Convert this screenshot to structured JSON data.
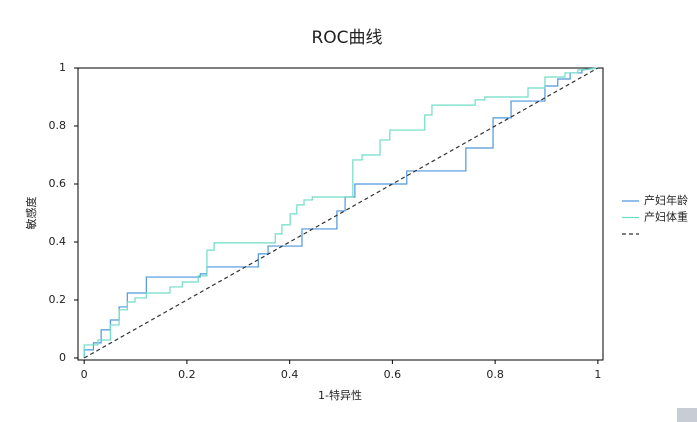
{
  "chart_data": {
    "type": "line",
    "title": "ROC曲线",
    "x_label": "1-特异性",
    "y_label": "敏感度",
    "xlim": [
      -0.012,
      1.01
    ],
    "ylim": [
      -0.007,
      1.0
    ],
    "xticks": [
      0,
      0.2,
      0.4,
      0.6,
      0.8,
      1
    ],
    "yticks": [
      0,
      0.2,
      0.4,
      0.6,
      0.8,
      1
    ],
    "legend": "right",
    "series": [
      {
        "name": "产妇年龄",
        "color": "#4f97dc",
        "x": [
          0,
          0,
          0.018,
          0.018,
          0.033,
          0.033,
          0.051,
          0.051,
          0.068,
          0.068,
          0.084,
          0.084,
          0.121,
          0.121,
          0.226,
          0.226,
          0.239,
          0.239,
          0.339,
          0.339,
          0.358,
          0.358,
          0.424,
          0.424,
          0.492,
          0.492,
          0.508,
          0.508,
          0.527,
          0.527,
          0.628,
          0.628,
          0.743,
          0.743,
          0.796,
          0.796,
          0.831,
          0.831,
          0.897,
          0.897,
          0.922,
          0.922,
          0.946,
          0.946,
          0.969,
          0.969,
          1
        ],
        "values": [
          0,
          0.028,
          0.028,
          0.052,
          0.052,
          0.097,
          0.097,
          0.131,
          0.131,
          0.176,
          0.176,
          0.224,
          0.224,
          0.279,
          0.279,
          0.29,
          0.29,
          0.314,
          0.314,
          0.359,
          0.359,
          0.386,
          0.386,
          0.445,
          0.445,
          0.507,
          0.507,
          0.555,
          0.555,
          0.6,
          0.6,
          0.645,
          0.645,
          0.724,
          0.724,
          0.828,
          0.828,
          0.886,
          0.886,
          0.938,
          0.938,
          0.962,
          0.962,
          0.983,
          0.983,
          0.993,
          1
        ]
      },
      {
        "name": "产妇体重",
        "color": "#6fdcc6",
        "x": [
          0,
          0,
          0.027,
          0.027,
          0.051,
          0.051,
          0.068,
          0.068,
          0.084,
          0.084,
          0.099,
          0.099,
          0.121,
          0.121,
          0.167,
          0.167,
          0.191,
          0.191,
          0.222,
          0.222,
          0.239,
          0.239,
          0.253,
          0.253,
          0.372,
          0.372,
          0.385,
          0.385,
          0.401,
          0.401,
          0.414,
          0.414,
          0.428,
          0.428,
          0.444,
          0.444,
          0.523,
          0.523,
          0.541,
          0.541,
          0.576,
          0.576,
          0.595,
          0.595,
          0.663,
          0.663,
          0.677,
          0.677,
          0.761,
          0.761,
          0.78,
          0.78,
          0.864,
          0.864,
          0.897,
          0.897,
          0.936,
          0.936,
          0.961,
          0.961,
          1
        ],
        "values": [
          0,
          0.045,
          0.045,
          0.062,
          0.062,
          0.114,
          0.114,
          0.166,
          0.166,
          0.193,
          0.193,
          0.207,
          0.207,
          0.224,
          0.224,
          0.245,
          0.245,
          0.262,
          0.262,
          0.283,
          0.283,
          0.372,
          0.372,
          0.397,
          0.397,
          0.428,
          0.428,
          0.459,
          0.459,
          0.497,
          0.497,
          0.528,
          0.528,
          0.545,
          0.545,
          0.555,
          0.555,
          0.683,
          0.683,
          0.7,
          0.7,
          0.752,
          0.752,
          0.786,
          0.786,
          0.838,
          0.838,
          0.872,
          0.872,
          0.89,
          0.89,
          0.9,
          0.9,
          0.931,
          0.931,
          0.969,
          0.969,
          0.983,
          0.983,
          0.993,
          1
        ]
      },
      {
        "color": "#333333",
        "dash": true,
        "x": [
          0,
          1
        ],
        "values": [
          0,
          1
        ]
      }
    ]
  }
}
